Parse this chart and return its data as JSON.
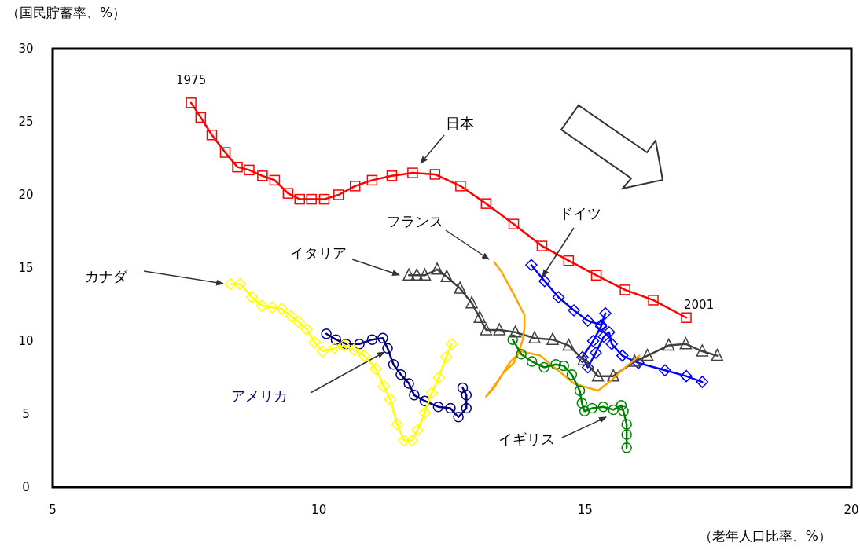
{
  "chart_data": {
    "type": "line",
    "xlabel": "（老年人口比率、%）",
    "ylabel": "（国民貯蓄率、%）",
    "xlim": [
      5,
      20
    ],
    "ylim": [
      0,
      30
    ],
    "xticks": [
      5,
      10,
      15,
      20
    ],
    "yticks": [
      0,
      5,
      10,
      15,
      20,
      25,
      30
    ],
    "grid": false,
    "line_style": "solid",
    "annotations": [
      {
        "text": "1975",
        "x": 7.6,
        "y": 26.3
      },
      {
        "text": "2001",
        "x": 16.9,
        "y": 11.6
      }
    ],
    "series": [
      {
        "name": "日本",
        "color": "#ff0000",
        "marker": "square",
        "x": [
          7.6,
          7.78,
          7.99,
          8.24,
          8.47,
          8.69,
          8.94,
          9.17,
          9.42,
          9.64,
          9.86,
          10.1,
          10.37,
          10.68,
          11.0,
          11.37,
          11.76,
          12.18,
          12.66,
          13.14,
          13.66,
          14.19,
          14.69,
          15.21,
          15.75,
          16.28,
          16.9
        ],
        "values": [
          26.3,
          25.3,
          24.1,
          22.9,
          21.9,
          21.7,
          21.3,
          21.0,
          20.1,
          19.7,
          19.7,
          19.7,
          20.0,
          20.6,
          21.0,
          21.3,
          21.5,
          21.4,
          20.6,
          19.4,
          18.0,
          16.5,
          15.5,
          14.5,
          13.5,
          12.8,
          11.6
        ]
      },
      {
        "name": "ドイツ",
        "color": "#0000ff",
        "marker": "diamond",
        "x": [
          13.99,
          14.24,
          14.5,
          14.79,
          15.05,
          15.3,
          15.38,
          15.3,
          15.15,
          14.95,
          15.05,
          15.2,
          15.35,
          15.45,
          15.5,
          15.7,
          16.0,
          16.5,
          16.9,
          17.2
        ],
        "values": [
          15.2,
          14.1,
          13.0,
          12.1,
          11.4,
          11.1,
          11.9,
          11.0,
          10.0,
          8.9,
          8.2,
          9.2,
          10.3,
          10.6,
          9.8,
          9.0,
          8.5,
          8.0,
          7.6,
          7.2
        ]
      },
      {
        "name": "イタリア",
        "color": "#404040",
        "marker": "triangle",
        "x": [
          11.69,
          11.84,
          11.99,
          12.22,
          12.4,
          12.65,
          12.87,
          13.02,
          13.14,
          13.39,
          13.69,
          14.05,
          14.39,
          14.69,
          14.97,
          15.24,
          15.53,
          15.93,
          16.17,
          16.57,
          16.89,
          17.2,
          17.48
        ],
        "values": [
          14.5,
          14.5,
          14.5,
          14.9,
          14.4,
          13.6,
          12.6,
          11.6,
          10.75,
          10.75,
          10.6,
          10.2,
          10.1,
          9.7,
          8.7,
          7.6,
          7.6,
          8.6,
          9.0,
          9.7,
          9.8,
          9.3,
          9.0
        ]
      },
      {
        "name": "フランス",
        "color": "#ffa500",
        "marker": "none",
        "x": [
          13.29,
          13.42,
          13.57,
          13.69,
          13.8,
          13.86,
          13.86,
          13.83,
          13.76,
          13.66,
          13.46,
          13.29,
          13.14,
          13.35,
          13.6,
          13.8,
          14.16,
          14.39,
          14.79,
          15.24,
          15.49,
          15.72,
          16.02
        ],
        "values": [
          15.4,
          14.8,
          13.8,
          13.0,
          12.2,
          11.8,
          10.9,
          10.1,
          9.3,
          8.5,
          7.8,
          6.8,
          6.2,
          7.2,
          8.6,
          9.3,
          9.0,
          8.3,
          7.1,
          6.6,
          7.3,
          8.1,
          9.0
        ]
      },
      {
        "name": "イギリス",
        "color": "#008000",
        "marker": "circle",
        "x": [
          13.64,
          13.8,
          14.0,
          14.23,
          14.45,
          14.6,
          14.75,
          14.9,
          14.94,
          14.99,
          15.13,
          15.34,
          15.53,
          15.68,
          15.72,
          15.78,
          15.78,
          15.78
        ],
        "values": [
          10.1,
          9.1,
          8.6,
          8.2,
          8.4,
          8.3,
          7.7,
          6.6,
          5.75,
          5.2,
          5.4,
          5.5,
          5.3,
          5.6,
          5.2,
          4.3,
          3.6,
          2.7
        ]
      },
      {
        "name": "アメリカ",
        "color": "#000080",
        "marker": "circle",
        "x": [
          10.14,
          10.32,
          10.51,
          10.76,
          11.0,
          11.2,
          11.29,
          11.4,
          11.54,
          11.69,
          11.79,
          11.99,
          12.24,
          12.47,
          12.62,
          12.77,
          12.77,
          12.7
        ],
        "values": [
          10.5,
          10.1,
          9.8,
          9.8,
          10.1,
          10.2,
          9.5,
          8.4,
          7.7,
          7.1,
          6.3,
          5.9,
          5.5,
          5.4,
          4.8,
          5.4,
          6.3,
          6.8
        ]
      },
      {
        "name": "カナダ",
        "color": "#ffff00",
        "marker": "diamond",
        "x": [
          8.34,
          8.52,
          8.74,
          8.93,
          9.12,
          9.3,
          9.48,
          9.62,
          9.77,
          9.92,
          10.07,
          10.29,
          10.47,
          10.66,
          10.85,
          11.07,
          11.22,
          11.34,
          11.47,
          11.6,
          11.75,
          11.85,
          11.99,
          12.12,
          12.25,
          12.39,
          12.49
        ],
        "values": [
          13.9,
          13.9,
          13.0,
          12.4,
          12.3,
          12.2,
          11.7,
          11.3,
          10.8,
          9.9,
          9.3,
          9.5,
          9.7,
          9.4,
          9.0,
          8.1,
          6.9,
          6.0,
          4.3,
          3.2,
          3.2,
          3.9,
          5.1,
          6.45,
          7.5,
          8.9,
          9.8
        ]
      }
    ]
  }
}
